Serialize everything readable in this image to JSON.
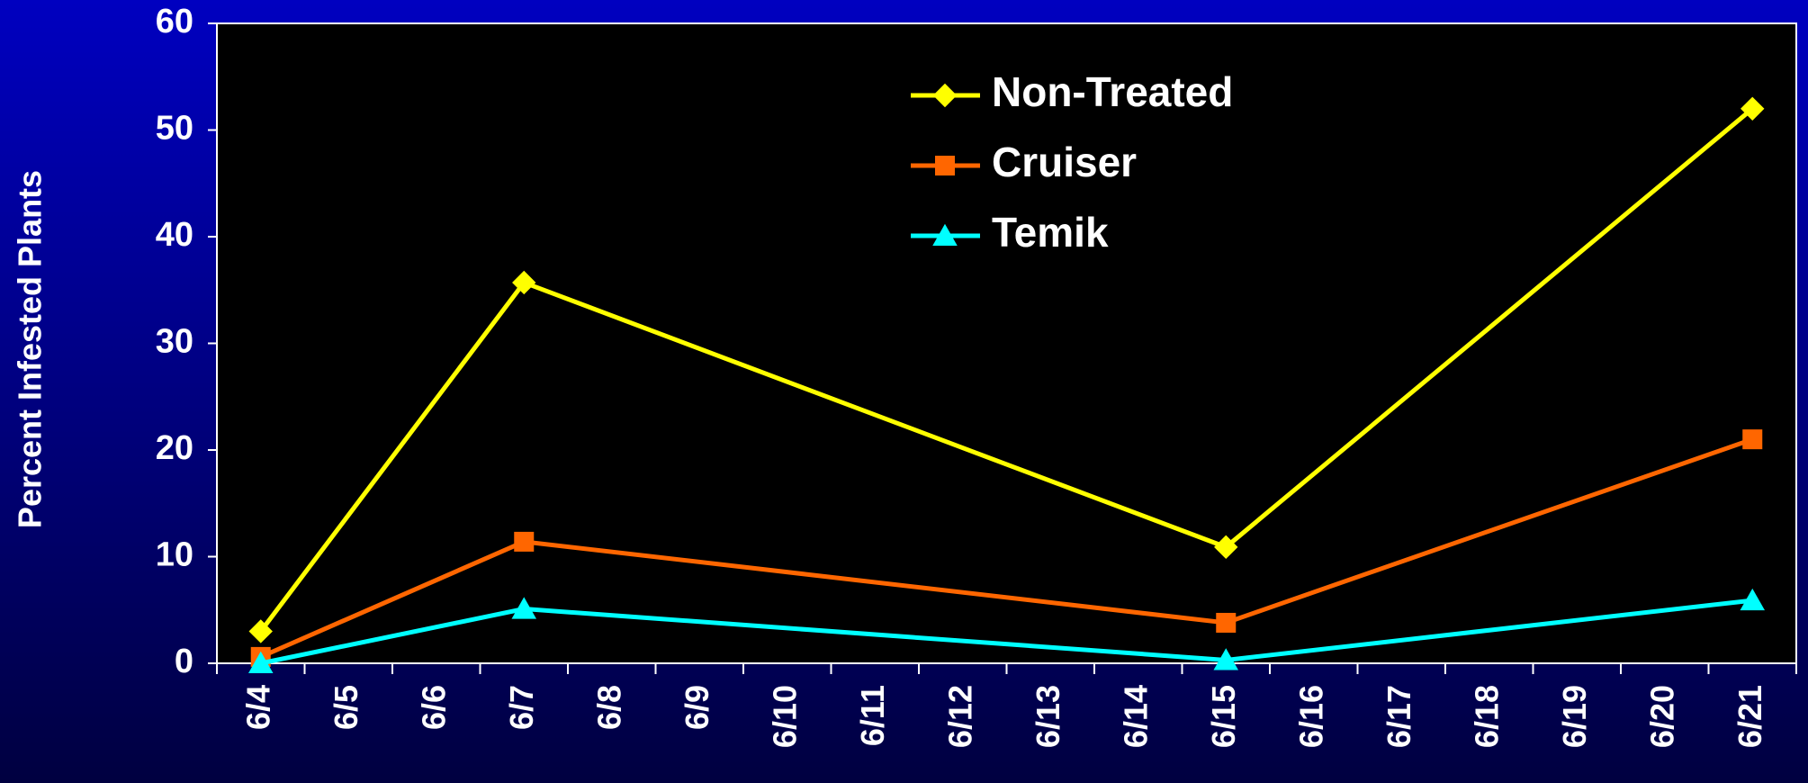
{
  "chart_data": {
    "type": "line",
    "ylabel": "Percent Infested Plants",
    "categories": [
      "6/4",
      "6/5",
      "6/6",
      "6/7",
      "6/8",
      "6/9",
      "6/10",
      "6/11",
      "6/12",
      "6/13",
      "6/14",
      "6/15",
      "6/16",
      "6/17",
      "6/18",
      "6/19",
      "6/20",
      "6/21"
    ],
    "x": [
      "6/4",
      "6/7",
      "6/15",
      "6/21"
    ],
    "series": [
      {
        "name": "Non-Treated",
        "color": "#ffff00",
        "marker": "diamond",
        "values": [
          3,
          35.7,
          10.9,
          52
        ]
      },
      {
        "name": "Cruiser",
        "color": "#ff6600",
        "marker": "square",
        "values": [
          0.6,
          11.4,
          3.8,
          21
        ]
      },
      {
        "name": "Temik",
        "color": "#00ffff",
        "marker": "triangle",
        "values": [
          0,
          5.1,
          0.3,
          5.9
        ]
      }
    ],
    "ylim": [
      0,
      60
    ],
    "yticks": [
      0,
      10,
      20,
      30,
      40,
      50,
      60
    ],
    "grid": false,
    "legend": "top"
  }
}
